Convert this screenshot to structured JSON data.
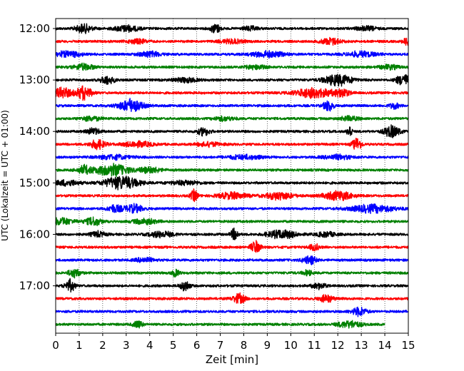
{
  "chart_data": {
    "type": "line",
    "title": "",
    "xlabel": "Zeit  [min]",
    "ylabel": "UTC (Lokalzeit = UTC + 01:00)",
    "xlim": [
      0,
      15
    ],
    "x_ticks": [
      "0",
      "1",
      "2",
      "3",
      "4",
      "5",
      "6",
      "7",
      "8",
      "9",
      "10",
      "11",
      "12",
      "13",
      "14",
      "15"
    ],
    "y_ticks": [
      "12:00",
      "13:00",
      "14:00",
      "15:00",
      "16:00",
      "17:00"
    ],
    "y_tick_rows": [
      0,
      4,
      8,
      12,
      16,
      20
    ],
    "grid": "vertical dotted lines at each minute",
    "color_cycle": [
      "#000000",
      "#ff0000",
      "#0000ff",
      "#008000"
    ],
    "rows": [
      {
        "start": "12:00",
        "color": "#000000",
        "end_min": 15,
        "events": [
          [
            1.2,
            0.35,
            0.6
          ],
          [
            3.0,
            0.5,
            0.45
          ],
          [
            6.8,
            0.2,
            0.7
          ],
          [
            8.3,
            0.3,
            0.3
          ],
          [
            13.2,
            0.4,
            0.3
          ]
        ]
      },
      {
        "start": "12:15",
        "color": "#ff0000",
        "end_min": 15,
        "events": [
          [
            3.5,
            0.4,
            0.3
          ],
          [
            7.5,
            0.5,
            0.3
          ],
          [
            11.7,
            0.4,
            0.45
          ],
          [
            15.0,
            0.2,
            0.6
          ]
        ]
      },
      {
        "start": "12:30",
        "color": "#0000ff",
        "end_min": 15,
        "events": [
          [
            0.5,
            0.6,
            0.4
          ],
          [
            4.0,
            0.5,
            0.35
          ],
          [
            9.0,
            0.7,
            0.4
          ],
          [
            13.0,
            0.6,
            0.4
          ]
        ]
      },
      {
        "start": "12:45",
        "color": "#008000",
        "end_min": 15,
        "events": [
          [
            1.2,
            0.4,
            0.45
          ],
          [
            8.5,
            0.4,
            0.3
          ],
          [
            14.2,
            0.4,
            0.3
          ]
        ]
      },
      {
        "start": "13:00",
        "color": "#000000",
        "end_min": 15,
        "events": [
          [
            2.2,
            0.3,
            0.55
          ],
          [
            5.5,
            0.5,
            0.3
          ],
          [
            12.0,
            0.6,
            0.8
          ],
          [
            14.8,
            0.3,
            0.8
          ]
        ]
      },
      {
        "start": "13:15",
        "color": "#ff0000",
        "end_min": 15,
        "events": [
          [
            0.3,
            0.4,
            0.7
          ],
          [
            1.2,
            0.3,
            1.0
          ],
          [
            11.0,
            0.8,
            0.7
          ],
          [
            12.2,
            0.3,
            0.5
          ]
        ]
      },
      {
        "start": "13:30",
        "color": "#0000ff",
        "end_min": 15,
        "events": [
          [
            3.2,
            0.5,
            0.9
          ],
          [
            11.6,
            0.2,
            0.8
          ],
          [
            14.4,
            0.2,
            0.4
          ]
        ]
      },
      {
        "start": "13:45",
        "color": "#008000",
        "end_min": 15,
        "events": [
          [
            1.5,
            0.4,
            0.3
          ],
          [
            7.2,
            0.4,
            0.3
          ],
          [
            12.5,
            0.4,
            0.3
          ]
        ]
      },
      {
        "start": "14:00",
        "color": "#000000",
        "end_min": 15,
        "events": [
          [
            1.6,
            0.3,
            0.4
          ],
          [
            6.3,
            0.25,
            0.6
          ],
          [
            12.5,
            0.1,
            0.9
          ],
          [
            14.3,
            0.35,
            0.8
          ]
        ]
      },
      {
        "start": "14:15",
        "color": "#ff0000",
        "end_min": 15,
        "events": [
          [
            1.8,
            0.3,
            0.7
          ],
          [
            3.5,
            0.6,
            0.4
          ],
          [
            6.5,
            0.5,
            0.3
          ],
          [
            12.8,
            0.2,
            0.9
          ]
        ]
      },
      {
        "start": "14:30",
        "color": "#0000ff",
        "end_min": 15,
        "events": [
          [
            2.5,
            0.7,
            0.3
          ],
          [
            8.0,
            0.7,
            0.3
          ],
          [
            12.0,
            0.6,
            0.3
          ]
        ]
      },
      {
        "start": "14:45",
        "color": "#008000",
        "end_min": 15,
        "events": [
          [
            1.2,
            0.3,
            0.6
          ],
          [
            2.4,
            0.7,
            0.85
          ],
          [
            4.0,
            0.5,
            0.35
          ]
        ]
      },
      {
        "start": "15:00",
        "color": "#000000",
        "end_min": 15,
        "events": [
          [
            0.5,
            0.5,
            0.4
          ],
          [
            2.8,
            0.7,
            0.95
          ],
          [
            5.5,
            0.6,
            0.3
          ]
        ]
      },
      {
        "start": "15:15",
        "color": "#ff0000",
        "end_min": 15,
        "events": [
          [
            5.9,
            0.15,
            0.9
          ],
          [
            7.5,
            0.6,
            0.45
          ],
          [
            9.5,
            0.6,
            0.5
          ],
          [
            12.0,
            0.6,
            0.65
          ]
        ]
      },
      {
        "start": "15:30",
        "color": "#0000ff",
        "end_min": 15,
        "events": [
          [
            2.5,
            0.3,
            0.5
          ],
          [
            3.3,
            0.4,
            0.6
          ],
          [
            13.5,
            0.9,
            0.55
          ]
        ]
      },
      {
        "start": "15:45",
        "color": "#008000",
        "end_min": 15,
        "events": [
          [
            0.3,
            0.5,
            0.5
          ],
          [
            1.6,
            0.3,
            0.65
          ],
          [
            3.8,
            0.5,
            0.35
          ]
        ]
      },
      {
        "start": "16:00",
        "color": "#000000",
        "end_min": 15,
        "events": [
          [
            1.8,
            0.3,
            0.4
          ],
          [
            4.5,
            0.5,
            0.4
          ],
          [
            7.6,
            0.15,
            0.8
          ],
          [
            9.6,
            0.6,
            0.6
          ],
          [
            11.5,
            0.4,
            0.35
          ]
        ]
      },
      {
        "start": "16:15",
        "color": "#ff0000",
        "end_min": 15,
        "events": [
          [
            8.5,
            0.2,
            0.85
          ],
          [
            11.0,
            0.2,
            0.5
          ]
        ]
      },
      {
        "start": "16:30",
        "color": "#0000ff",
        "end_min": 15,
        "events": [
          [
            3.8,
            0.4,
            0.3
          ],
          [
            10.8,
            0.3,
            0.6
          ]
        ]
      },
      {
        "start": "16:45",
        "color": "#008000",
        "end_min": 15,
        "events": [
          [
            0.8,
            0.25,
            0.6
          ],
          [
            5.1,
            0.15,
            0.5
          ],
          [
            10.7,
            0.2,
            0.35
          ]
        ]
      },
      {
        "start": "17:00",
        "color": "#000000",
        "end_min": 15,
        "events": [
          [
            0.6,
            0.2,
            0.9
          ],
          [
            5.5,
            0.2,
            0.75
          ],
          [
            11.2,
            0.3,
            0.4
          ]
        ]
      },
      {
        "start": "17:15",
        "color": "#ff0000",
        "end_min": 15,
        "events": [
          [
            7.8,
            0.25,
            0.75
          ],
          [
            11.5,
            0.3,
            0.5
          ]
        ]
      },
      {
        "start": "17:30",
        "color": "#0000ff",
        "end_min": 15,
        "events": [
          [
            12.9,
            0.3,
            0.6
          ]
        ]
      },
      {
        "start": "17:45",
        "color": "#008000",
        "end_min": 14.0,
        "events": [
          [
            3.5,
            0.2,
            0.5
          ],
          [
            12.5,
            0.5,
            0.5
          ]
        ]
      }
    ]
  }
}
